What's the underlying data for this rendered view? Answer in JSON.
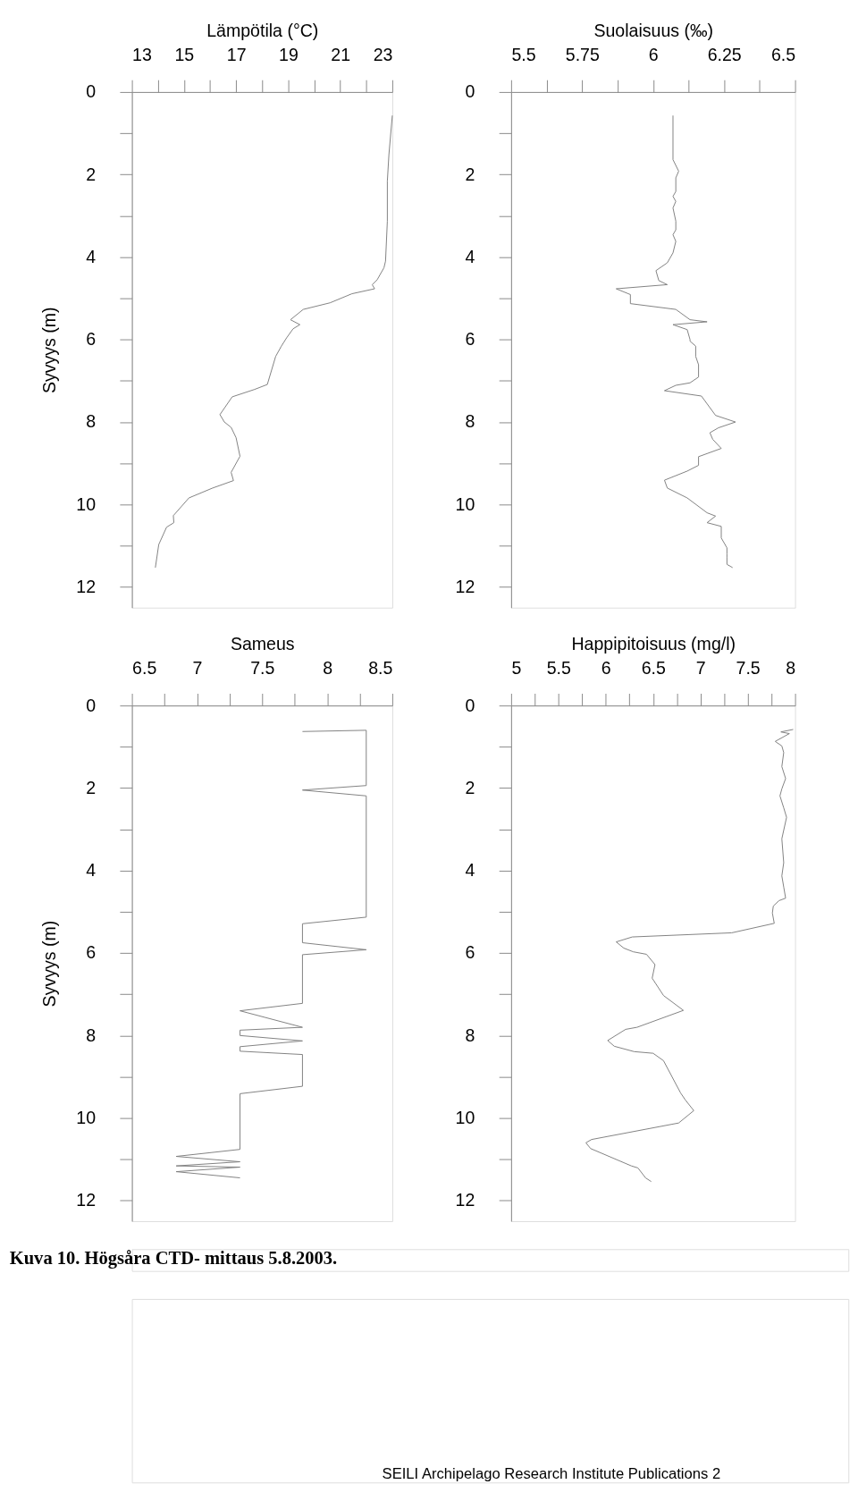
{
  "chart_data": [
    {
      "type": "line",
      "xlabel": "Lämpötila (°C)",
      "ylabel": "Syvyys (m)",
      "xlim": [
        13,
        23
      ],
      "xticks": [
        13,
        {
          "value": 14,
          "label": null
        },
        15,
        {
          "value": 16,
          "label": null
        },
        17,
        {
          "value": 18,
          "label": null
        },
        19,
        {
          "value": 20,
          "label": null
        },
        21,
        {
          "value": 22,
          "label": null
        },
        23
      ],
      "ylim": [
        12.5,
        0
      ],
      "yticks": [
        0,
        {
          "value": 1,
          "label": null
        },
        2,
        {
          "value": 3,
          "label": null
        },
        4,
        {
          "value": 5,
          "label": null
        },
        6,
        {
          "value": 7,
          "label": null
        },
        8,
        {
          "value": 9,
          "label": null
        },
        10,
        {
          "value": 11,
          "label": null
        },
        12
      ],
      "grid": false,
      "series": [
        {
          "color": "#808080",
          "x": [
            23.0,
            22.87,
            22.81,
            22.81,
            22.74,
            22.68,
            22.42,
            22.23,
            22.32,
            21.45,
            20.61,
            19.58,
            19.09,
            19.45,
            19.19,
            18.94,
            18.74,
            18.52,
            18.2,
            17.71,
            16.85,
            16.38,
            16.55,
            16.81,
            17.0,
            17.15,
            16.81,
            16.9,
            16.1,
            15.19,
            14.59,
            14.61,
            14.33,
            14.03,
            13.9
          ],
          "values": [
            0.57,
            1.52,
            2.16,
            3.13,
            4.1,
            4.26,
            4.55,
            4.67,
            4.77,
            4.89,
            5.11,
            5.27,
            5.52,
            5.64,
            5.74,
            5.96,
            6.16,
            6.41,
            7.09,
            7.21,
            7.39,
            7.82,
            8.0,
            8.13,
            8.38,
            8.83,
            9.22,
            9.42,
            9.6,
            9.84,
            10.27,
            10.44,
            10.55,
            10.97,
            11.53
          ]
        }
      ]
    },
    {
      "type": "line",
      "xlabel": "Suolaisuus (‰)",
      "xlim": [
        5.5,
        6.5
      ],
      "xticks": [
        5.5,
        {
          "value": 5.625,
          "label": null
        },
        5.75,
        {
          "value": 5.875,
          "label": null
        },
        6,
        {
          "value": 6.125,
          "label": null
        },
        6.25,
        {
          "value": 6.375,
          "label": null
        },
        6.5
      ],
      "ylim": [
        12.5,
        0
      ],
      "yticks": [
        0,
        {
          "value": 1,
          "label": null
        },
        2,
        {
          "value": 3,
          "label": null
        },
        4,
        {
          "value": 5,
          "label": null
        },
        6,
        {
          "value": 7,
          "label": null
        },
        8,
        {
          "value": 9,
          "label": null
        },
        10,
        {
          "value": 11,
          "label": null
        },
        12
      ],
      "grid": false,
      "series": [
        {
          "color": "#808080",
          "x": [
            6.07,
            6.07,
            6.09,
            6.08,
            6.08,
            6.07,
            6.08,
            6.07,
            6.08,
            6.08,
            6.07,
            6.08,
            6.07,
            6.05,
            6.01,
            6.02,
            6.05,
            5.87,
            5.92,
            5.92,
            6.08,
            6.13,
            6.19,
            6.07,
            6.12,
            6.13,
            6.13,
            6.15,
            6.15,
            6.16,
            6.16,
            6.13,
            6.08,
            6.04,
            6.17,
            6.22,
            6.29,
            6.23,
            6.2,
            6.21,
            6.24,
            6.16,
            6.16,
            6.12,
            6.04,
            6.05,
            6.12,
            6.19,
            6.22,
            6.19,
            6.24,
            6.24,
            6.26,
            6.26,
            6.26,
            6.26,
            6.28
          ],
          "values": [
            0.57,
            1.64,
            1.92,
            2.08,
            2.41,
            2.53,
            2.65,
            2.81,
            3.13,
            3.34,
            3.46,
            3.62,
            3.9,
            4.14,
            4.33,
            4.57,
            4.67,
            4.77,
            4.91,
            5.13,
            5.27,
            5.52,
            5.57,
            5.64,
            5.76,
            6.0,
            6.04,
            6.16,
            6.41,
            6.61,
            6.91,
            7.05,
            7.11,
            7.24,
            7.37,
            7.84,
            8.0,
            8.14,
            8.26,
            8.42,
            8.64,
            8.84,
            9.05,
            9.19,
            9.41,
            9.6,
            9.84,
            10.2,
            10.28,
            10.44,
            10.53,
            10.81,
            11.05,
            11.2,
            11.29,
            11.45,
            11.53
          ]
        }
      ]
    },
    {
      "type": "line",
      "xlabel": "Sameus",
      "ylabel": "Syvyys (m)",
      "xlim": [
        6.5,
        8.5
      ],
      "xticks": [
        6.5,
        {
          "value": 6.75,
          "label": null
        },
        7,
        {
          "value": 7.25,
          "label": null
        },
        7.5,
        {
          "value": 7.75,
          "label": null
        },
        8,
        {
          "value": 8.25,
          "label": null
        },
        8.5
      ],
      "ylim": [
        12.5,
        0
      ],
      "yticks": [
        0,
        {
          "value": 1,
          "label": null
        },
        2,
        {
          "value": 3,
          "label": null
        },
        4,
        {
          "value": 5,
          "label": null
        },
        6,
        {
          "value": 7,
          "label": null
        },
        8,
        {
          "value": 9,
          "label": null
        },
        10,
        {
          "value": 11,
          "label": null
        },
        12
      ],
      "grid": false,
      "annotations": [
        "Kuva 10. Högsåra CTD- mittaus 5.8.2003."
      ],
      "series": [
        {
          "color": "#808080",
          "x": [
            7.81,
            8.3,
            8.3,
            7.81,
            8.3,
            8.3,
            7.81,
            7.81,
            8.3,
            7.81,
            7.81,
            7.33,
            7.81,
            7.33,
            7.33,
            7.81,
            7.33,
            7.33,
            7.81,
            7.81,
            7.33,
            7.33,
            6.84,
            7.33,
            6.84,
            7.33,
            6.84,
            7.33
          ],
          "values": [
            0.63,
            0.6,
            1.94,
            2.05,
            2.19,
            5.13,
            5.29,
            5.75,
            5.92,
            6.04,
            7.22,
            7.4,
            7.8,
            7.87,
            8.0,
            8.13,
            8.27,
            8.38,
            8.46,
            9.23,
            9.41,
            10.76,
            10.93,
            11.06,
            11.16,
            11.19,
            11.3,
            11.45
          ]
        }
      ]
    },
    {
      "type": "line",
      "xlabel": "Happipitoisuus (mg/l)",
      "xlim": [
        5,
        8
      ],
      "xticks": [
        5,
        {
          "value": 5.25,
          "label": null
        },
        5.5,
        {
          "value": 5.75,
          "label": null
        },
        6,
        {
          "value": 6.25,
          "label": null
        },
        6.5,
        {
          "value": 6.75,
          "label": null
        },
        7,
        {
          "value": 7.25,
          "label": null
        },
        7.5,
        {
          "value": 7.75,
          "label": null
        },
        8
      ],
      "ylim": [
        12.5,
        0
      ],
      "yticks": [
        0,
        {
          "value": 1,
          "label": null
        },
        2,
        {
          "value": 3,
          "label": null
        },
        4,
        {
          "value": 5,
          "label": null
        },
        6,
        {
          "value": 7,
          "label": null
        },
        8,
        {
          "value": 9,
          "label": null
        },
        10,
        {
          "value": 11,
          "label": null
        },
        12
      ],
      "grid": false,
      "annotations": [
        "SEILI Archipelago Research Institute Publications 2"
      ],
      "series": [
        {
          "color": "#808080",
          "x": [
            7.98,
            7.85,
            7.94,
            7.79,
            7.86,
            7.88,
            7.86,
            7.9,
            7.86,
            7.84,
            7.88,
            7.91,
            7.86,
            7.88,
            7.86,
            7.88,
            7.9,
            7.83,
            7.77,
            7.76,
            7.78,
            7.33,
            6.28,
            6.11,
            6.19,
            6.29,
            6.43,
            6.52,
            6.49,
            6.61,
            6.82,
            6.33,
            6.21,
            6.02,
            6.09,
            6.3,
            6.5,
            6.61,
            6.79,
            6.84,
            6.93,
            6.77,
            5.85,
            5.79,
            5.84,
            6.27,
            6.34,
            6.42,
            6.48
          ],
          "values": [
            0.58,
            0.64,
            0.68,
            0.87,
            0.98,
            1.14,
            1.48,
            1.77,
            2.02,
            2.19,
            2.48,
            2.71,
            3.23,
            3.81,
            4.13,
            4.4,
            4.67,
            4.73,
            4.86,
            5.03,
            5.28,
            5.51,
            5.61,
            5.73,
            5.88,
            5.97,
            6.03,
            6.28,
            6.61,
            7.03,
            7.39,
            7.8,
            7.85,
            8.12,
            8.26,
            8.39,
            8.43,
            8.61,
            9.39,
            9.56,
            9.82,
            10.12,
            10.52,
            10.6,
            10.74,
            11.16,
            11.21,
            11.45,
            11.54
          ]
        }
      ]
    }
  ]
}
